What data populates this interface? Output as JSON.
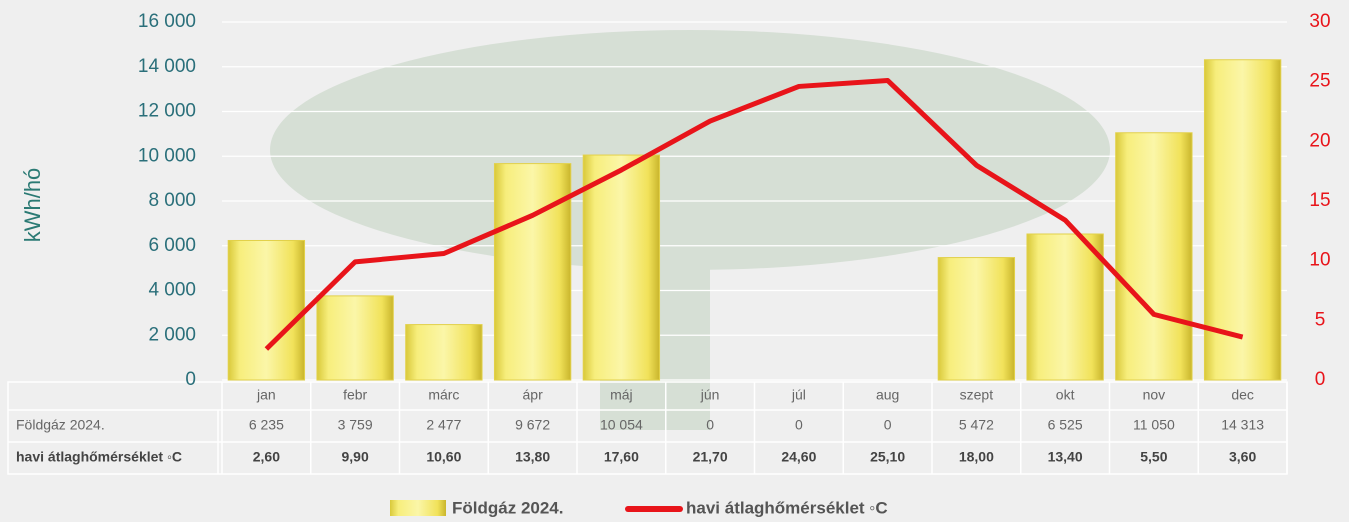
{
  "chart_data": {
    "type": "bar",
    "y_label": "kWh/hó",
    "categories": [
      "jan",
      "febr",
      "márc",
      "ápr",
      "máj",
      "jún",
      "júl",
      "aug",
      "szept",
      "okt",
      "nov",
      "dec"
    ],
    "series": [
      {
        "name": "Földgáz 2024.",
        "type": "bar",
        "color": "#f2e35a",
        "values": [
          6235,
          3759,
          2477,
          9672,
          10054,
          0,
          0,
          0,
          5472,
          6525,
          11050,
          14313
        ],
        "value_labels": [
          "6 235",
          "3 759",
          "2 477",
          "9 672",
          "10 054",
          "0",
          "0",
          "0",
          "5 472",
          "6 525",
          "11 050",
          "14 313"
        ]
      },
      {
        "name": "havi átlaghőmérséklet ◦C",
        "type": "line",
        "axis": "y2",
        "color": "#e8141a",
        "values": [
          2.6,
          9.9,
          10.6,
          13.8,
          17.6,
          21.7,
          24.6,
          25.1,
          18.0,
          13.4,
          5.5,
          3.6
        ],
        "value_labels": [
          "2,60",
          "9,90",
          "10,60",
          "13,80",
          "17,60",
          "21,70",
          "24,60",
          "25,10",
          "18,00",
          "13,40",
          "5,50",
          "3,60"
        ]
      }
    ],
    "ylim": [
      0,
      16000
    ],
    "yticks": [
      0,
      {
        "value": 2000,
        "label": "2 000"
      },
      {
        "value": 4000,
        "label": "4 000"
      },
      {
        "value": 6000,
        "label": "6 000"
      },
      {
        "value": 8000,
        "label": "8 000"
      },
      {
        "value": 10000,
        "label": "10 000"
      },
      {
        "value": 12000,
        "label": "12 000"
      },
      {
        "value": 14000,
        "label": "14 000"
      },
      {
        "value": 16000,
        "label": "16 000"
      }
    ],
    "y2lim": [
      0,
      30
    ],
    "y2ticks": [
      0,
      5,
      10,
      15,
      20,
      25,
      30
    ],
    "grid": true
  }
}
